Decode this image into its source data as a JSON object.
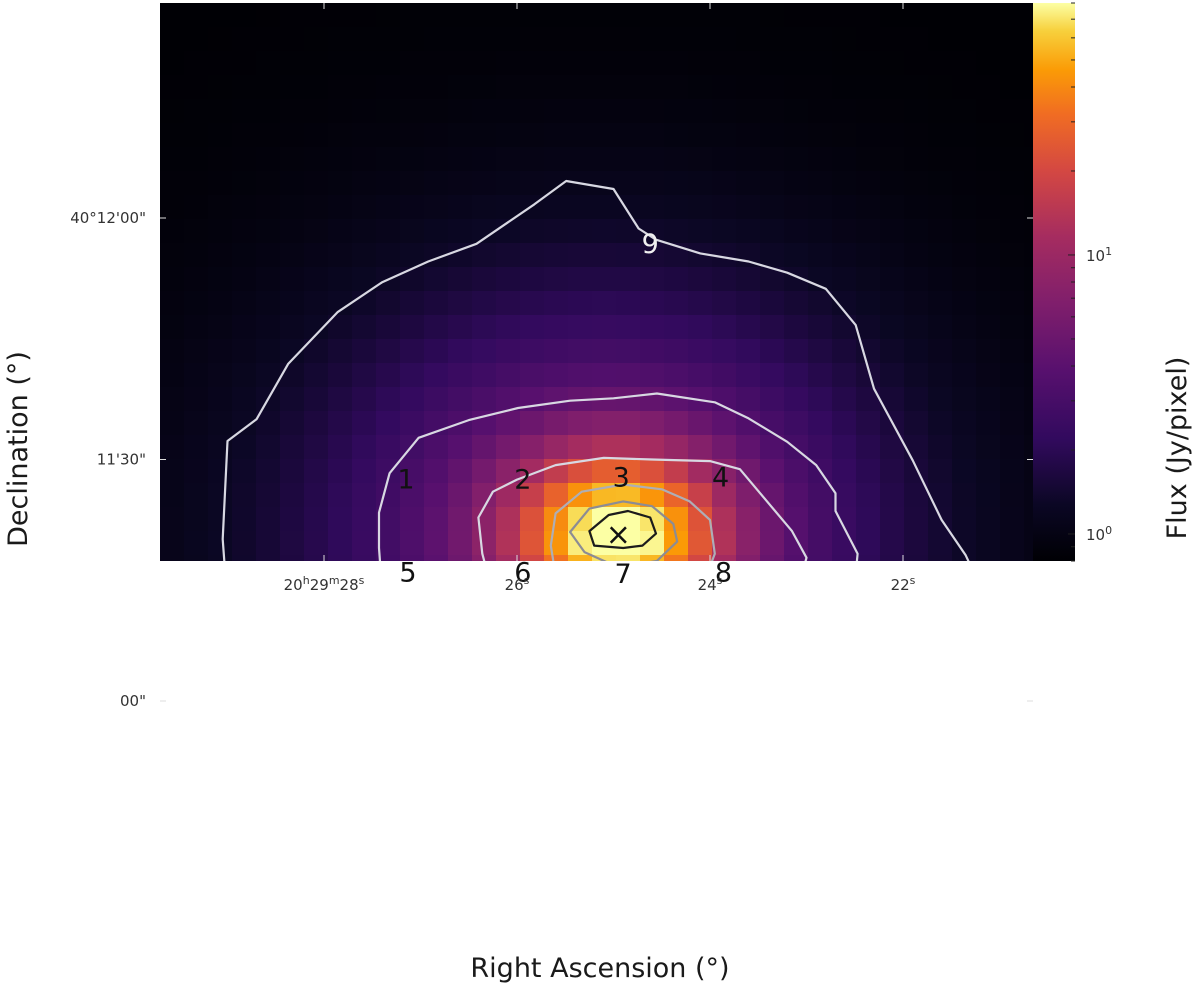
{
  "chart_data": {
    "type": "heatmap",
    "title": "",
    "xlabel": "Right Ascension (°)",
    "ylabel": "Declination (°)",
    "colorbar_label": "Flux (Jy/pixel)",
    "colormap": "inferno",
    "color_scale": "log",
    "colorbar_range": [
      0.8,
      80
    ],
    "x_ticks": [
      {
        "h": "20",
        "m": "29",
        "s": "28",
        "ra_sec": 28
      },
      {
        "s": "26",
        "ra_sec": 26
      },
      {
        "s": "24",
        "ra_sec": 24
      },
      {
        "s": "22",
        "ra_sec": 22
      }
    ],
    "y_ticks": [
      {
        "label": "40°12'00\"",
        "dec_arcsec": 720
      },
      {
        "label": "11'30\"",
        "dec_arcsec": 690
      },
      {
        "label": "00\"",
        "dec_arcsec": 660
      }
    ],
    "colorbar_ticks": [
      {
        "base": "10",
        "exp": "0",
        "value": 1
      },
      {
        "base": "10",
        "exp": "1",
        "value": 10
      }
    ],
    "peak": {
      "ra_sec": 24.95,
      "dec_arcsec": 680.5,
      "marker": "×"
    },
    "region_labels": [
      {
        "text": "1",
        "ra_sec": 27.15,
        "dec_arcsec": 687.3,
        "color": "#111111"
      },
      {
        "text": "2",
        "ra_sec": 25.94,
        "dec_arcsec": 687.3,
        "color": "#111111"
      },
      {
        "text": "3",
        "ra_sec": 24.92,
        "dec_arcsec": 687.6,
        "color": "#111111"
      },
      {
        "text": "4",
        "ra_sec": 23.89,
        "dec_arcsec": 687.6,
        "color": "#111111"
      },
      {
        "text": "5",
        "ra_sec": 27.13,
        "dec_arcsec": 675.8,
        "color": "#111111"
      },
      {
        "text": "6",
        "ra_sec": 25.94,
        "dec_arcsec": 675.8,
        "color": "#111111"
      },
      {
        "text": "7",
        "ra_sec": 24.9,
        "dec_arcsec": 675.6,
        "color": "#111111"
      },
      {
        "text": "8",
        "ra_sec": 23.86,
        "dec_arcsec": 675.8,
        "color": "#111111"
      },
      {
        "text": "9",
        "ra_sec": 24.62,
        "dec_arcsec": 716.6,
        "color": "#f0f0f0"
      }
    ],
    "contours": [
      {
        "color": "#d8d8e2",
        "points": [
          [
            29.0,
            692.3
          ],
          [
            28.7,
            695.0
          ],
          [
            28.37,
            701.9
          ],
          [
            27.86,
            708.3
          ],
          [
            27.4,
            712.0
          ],
          [
            26.92,
            714.6
          ],
          [
            26.42,
            716.8
          ],
          [
            25.82,
            721.7
          ],
          [
            25.49,
            724.6
          ],
          [
            25.0,
            723.6
          ],
          [
            24.74,
            718.7
          ],
          [
            24.56,
            717.3
          ],
          [
            24.1,
            715.6
          ],
          [
            23.6,
            714.6
          ],
          [
            23.2,
            713.2
          ],
          [
            22.8,
            711.2
          ],
          [
            22.49,
            706.7
          ],
          [
            22.3,
            698.8
          ],
          [
            21.9,
            689.9
          ],
          [
            21.6,
            682.5
          ],
          [
            21.35,
            678.1
          ],
          [
            21.06,
            670.7
          ],
          [
            20.82,
            668.5
          ],
          [
            20.57,
            667.0
          ],
          [
            20.7,
            663.6
          ],
          [
            21.2,
            656.5
          ],
          [
            21.6,
            652.1
          ],
          [
            22.1,
            649.1
          ],
          [
            22.5,
            646.9
          ],
          [
            22.8,
            645.2
          ],
          [
            23.2,
            642.0
          ],
          [
            23.55,
            639.3
          ],
          [
            23.84,
            635.3
          ],
          [
            24.21,
            639.3
          ],
          [
            24.38,
            640.6
          ],
          [
            24.6,
            639.8
          ],
          [
            24.9,
            637.6
          ],
          [
            25.19,
            640.3
          ],
          [
            25.55,
            639.6
          ],
          [
            25.98,
            638.8
          ],
          [
            26.2,
            638.6
          ],
          [
            26.6,
            640.3
          ],
          [
            27.0,
            643.0
          ],
          [
            27.42,
            649.4
          ],
          [
            27.85,
            654.5
          ],
          [
            28.27,
            659.7
          ],
          [
            28.6,
            663.1
          ],
          [
            29.0,
            672.0
          ],
          [
            29.05,
            680.1
          ],
          [
            29.0,
            692.3
          ]
        ]
      },
      {
        "color": "#d8d8e2",
        "points": [
          [
            27.43,
            683.4
          ],
          [
            27.32,
            688.3
          ],
          [
            27.02,
            692.7
          ],
          [
            26.5,
            694.9
          ],
          [
            25.99,
            696.4
          ],
          [
            25.45,
            697.3
          ],
          [
            25.0,
            697.6
          ],
          [
            24.55,
            698.2
          ],
          [
            23.95,
            697.1
          ],
          [
            23.6,
            695.1
          ],
          [
            23.2,
            692.2
          ],
          [
            22.9,
            689.3
          ],
          [
            22.7,
            685.8
          ],
          [
            22.7,
            683.6
          ],
          [
            22.47,
            678.3
          ],
          [
            22.5,
            674.6
          ],
          [
            22.75,
            672.4
          ],
          [
            22.9,
            668.5
          ],
          [
            23.16,
            664.8
          ],
          [
            23.4,
            663.8
          ],
          [
            24.0,
            663.3
          ],
          [
            24.5,
            663.1
          ],
          [
            25.0,
            662.8
          ],
          [
            25.8,
            662.6
          ],
          [
            26.1,
            663.8
          ],
          [
            26.5,
            664.8
          ],
          [
            26.8,
            667.7
          ],
          [
            27.05,
            669.7
          ],
          [
            27.4,
            674.1
          ],
          [
            27.43,
            679.0
          ],
          [
            27.43,
            683.4
          ]
        ]
      },
      {
        "color": "#d8d8e2",
        "points": [
          [
            26.4,
            682.8
          ],
          [
            26.25,
            686.0
          ],
          [
            26.0,
            687.5
          ],
          [
            25.6,
            689.3
          ],
          [
            25.1,
            690.2
          ],
          [
            24.6,
            690.0
          ],
          [
            24.0,
            689.8
          ],
          [
            23.69,
            688.8
          ],
          [
            23.48,
            685.8
          ],
          [
            23.15,
            681.1
          ],
          [
            23.0,
            677.8
          ],
          [
            23.1,
            673.4
          ],
          [
            23.4,
            669.2
          ],
          [
            23.8,
            666.5
          ],
          [
            24.5,
            666.0
          ],
          [
            25.3,
            666.2
          ],
          [
            25.7,
            666.2
          ],
          [
            26.0,
            667.5
          ],
          [
            26.24,
            672.9
          ],
          [
            26.36,
            678.3
          ],
          [
            26.4,
            682.8
          ]
        ]
      },
      {
        "color": "#aeaeb6",
        "points": [
          [
            25.65,
            679.3
          ],
          [
            25.6,
            683.3
          ],
          [
            25.33,
            686.0
          ],
          [
            24.9,
            686.9
          ],
          [
            24.5,
            686.3
          ],
          [
            24.21,
            684.8
          ],
          [
            24.0,
            682.5
          ],
          [
            23.95,
            678.3
          ],
          [
            24.05,
            675.1
          ],
          [
            24.27,
            672.4
          ],
          [
            24.6,
            671.6
          ],
          [
            25.0,
            671.4
          ],
          [
            25.42,
            672.6
          ],
          [
            25.6,
            675.6
          ],
          [
            25.65,
            679.3
          ]
        ]
      },
      {
        "color": "#8c8c94",
        "points": [
          [
            25.3,
            678.5
          ],
          [
            25.45,
            681.0
          ],
          [
            25.25,
            683.9
          ],
          [
            24.9,
            684.8
          ],
          [
            24.6,
            684.2
          ],
          [
            24.38,
            682.0
          ],
          [
            24.34,
            679.8
          ],
          [
            24.55,
            677.4
          ],
          [
            24.95,
            676.6
          ],
          [
            25.3,
            678.5
          ]
        ]
      },
      {
        "color": "#1c1c1c",
        "points": [
          [
            25.25,
            681.1
          ],
          [
            25.05,
            683.1
          ],
          [
            24.85,
            683.6
          ],
          [
            24.62,
            682.8
          ],
          [
            24.56,
            680.8
          ],
          [
            24.7,
            679.3
          ],
          [
            24.9,
            679.0
          ],
          [
            25.2,
            679.3
          ],
          [
            25.25,
            681.1
          ]
        ]
      }
    ]
  }
}
